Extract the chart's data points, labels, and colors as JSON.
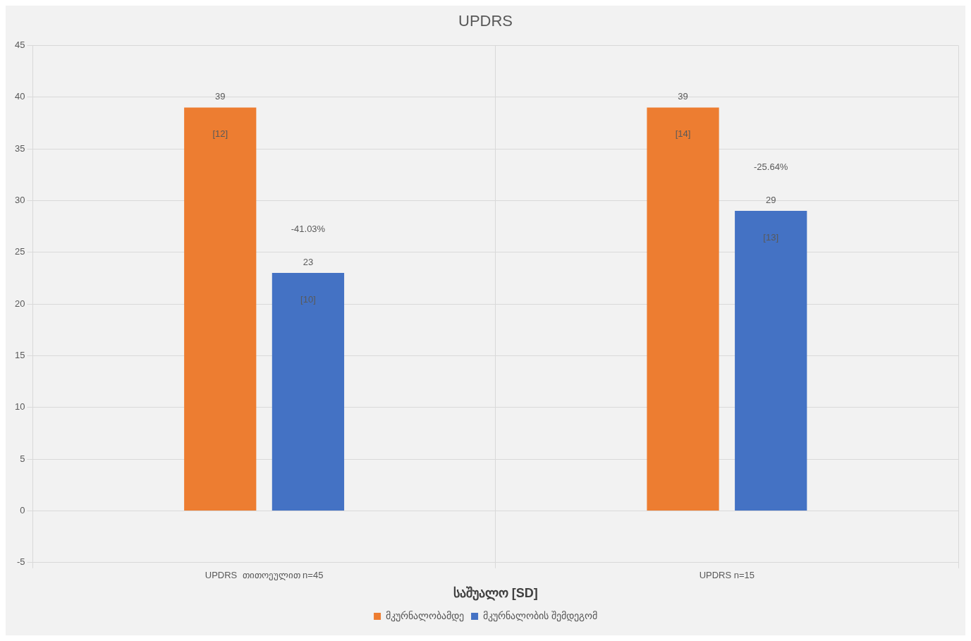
{
  "chart_data": {
    "type": "bar",
    "title": "UPDRS",
    "xlabel": "საშუალო [SD]",
    "categories": [
      "UPDRS  თითოეულით n=45",
      "UPDRS n=15"
    ],
    "series": [
      {
        "name": "მკურნალობამდე",
        "color": "#ed7d31",
        "values": [
          39,
          39
        ]
      },
      {
        "name": "მკურნალობის შემდეგომ",
        "color": "#4472c4",
        "values": [
          23,
          29
        ]
      }
    ],
    "ylim": [
      -5,
      45
    ],
    "yticks": [
      -5,
      0,
      5,
      10,
      15,
      20,
      25,
      30,
      35,
      40,
      45
    ],
    "grid": true,
    "legend": "bottom",
    "data_labels": true,
    "annotations": [
      "[12]",
      "[10]",
      "-41.03%",
      "[14]",
      "[13]",
      "-25.64%"
    ]
  }
}
